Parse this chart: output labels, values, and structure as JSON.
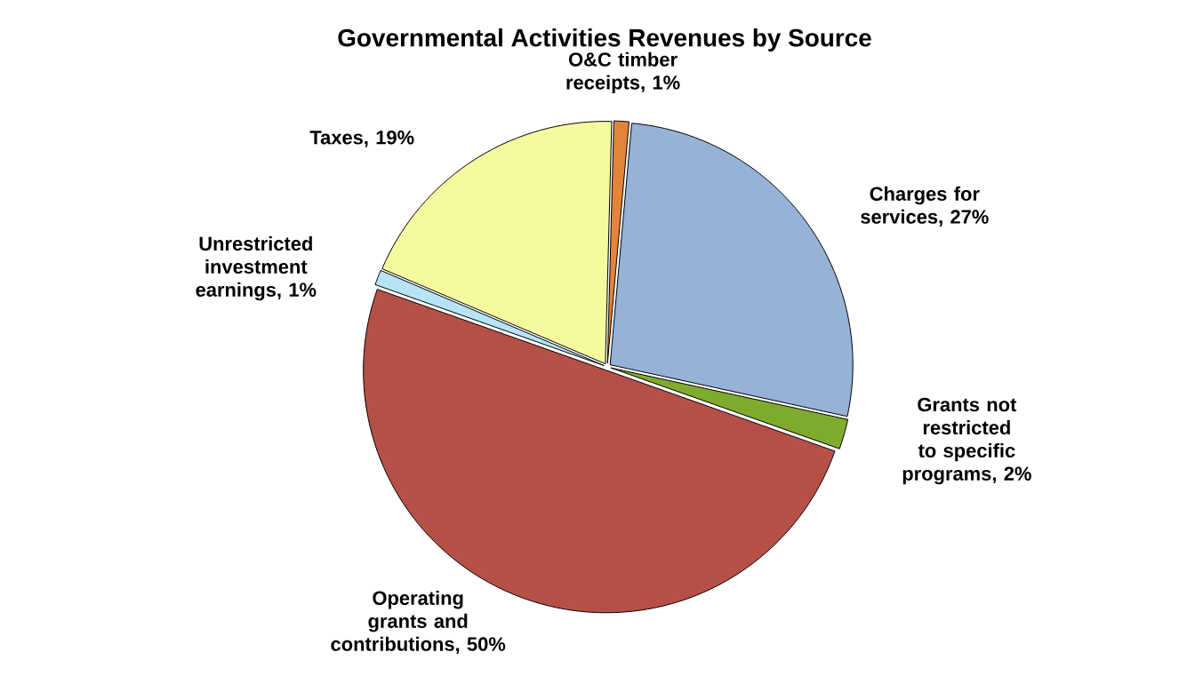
{
  "chart_data": {
    "type": "pie",
    "title": "Governmental Activities Revenues by Source",
    "categories": [
      "O&C timber receipts, 1%",
      "Charges for services, 27%",
      "Grants not restricted to specific programs, 2%",
      "Operating grants and contributions, 50%",
      "Unrestricted investment earnings, 1%",
      "Taxes, 19%"
    ],
    "values": [
      1,
      27,
      2,
      50,
      1,
      19
    ],
    "colors": [
      "#e3843a",
      "#95b3d7",
      "#7fab2d",
      "#b65046",
      "#b7e4f4",
      "#f6fa9f"
    ]
  }
}
